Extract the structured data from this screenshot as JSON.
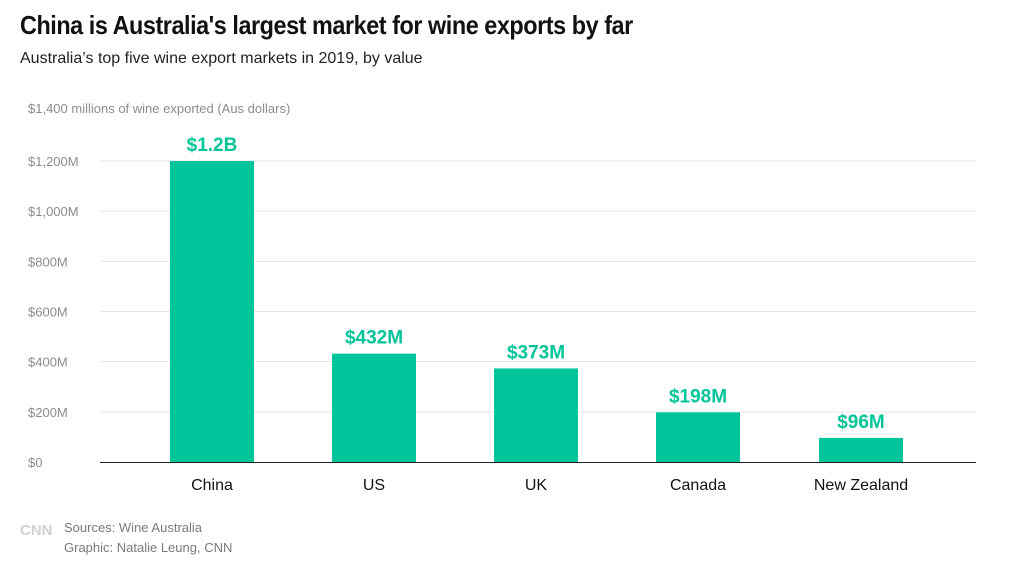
{
  "title": "China is Australia's largest market for wine exports by far",
  "subtitle": "Australia’s top five wine export markets in 2019, by value",
  "colors": {
    "bar": "#00c49a",
    "bar_label": "#00c49a",
    "grid": "#e6e6e6",
    "tick_text": "#8c8c8c",
    "category_text": "#111111"
  },
  "chart_data": {
    "type": "bar",
    "title": "China is Australia's largest market for wine exports by far",
    "subtitle": "Australia’s top five wine export markets in 2019, by value",
    "ylabel": "$1,400 millions of wine exported (Aus dollars)",
    "xlabel": "",
    "categories": [
      "China",
      "US",
      "UK",
      "Canada",
      "New Zealand"
    ],
    "values": [
      1200,
      432,
      373,
      198,
      96
    ],
    "data_labels": [
      "$1.2B",
      "$432M",
      "$373M",
      "$198M",
      "$96M"
    ],
    "ylim": [
      0,
      1400
    ],
    "yticks": [
      0,
      200,
      400,
      600,
      800,
      1000,
      1200
    ],
    "ytick_labels": [
      "$0",
      "$200M",
      "$400M",
      "$600M",
      "$800M",
      "$1,000M",
      "$1,200M"
    ],
    "grid": true,
    "legend": "none"
  },
  "footer": {
    "logo": "CNN",
    "sources": "Sources: Wine Australia",
    "graphic": "Graphic: Natalie Leung, CNN"
  }
}
